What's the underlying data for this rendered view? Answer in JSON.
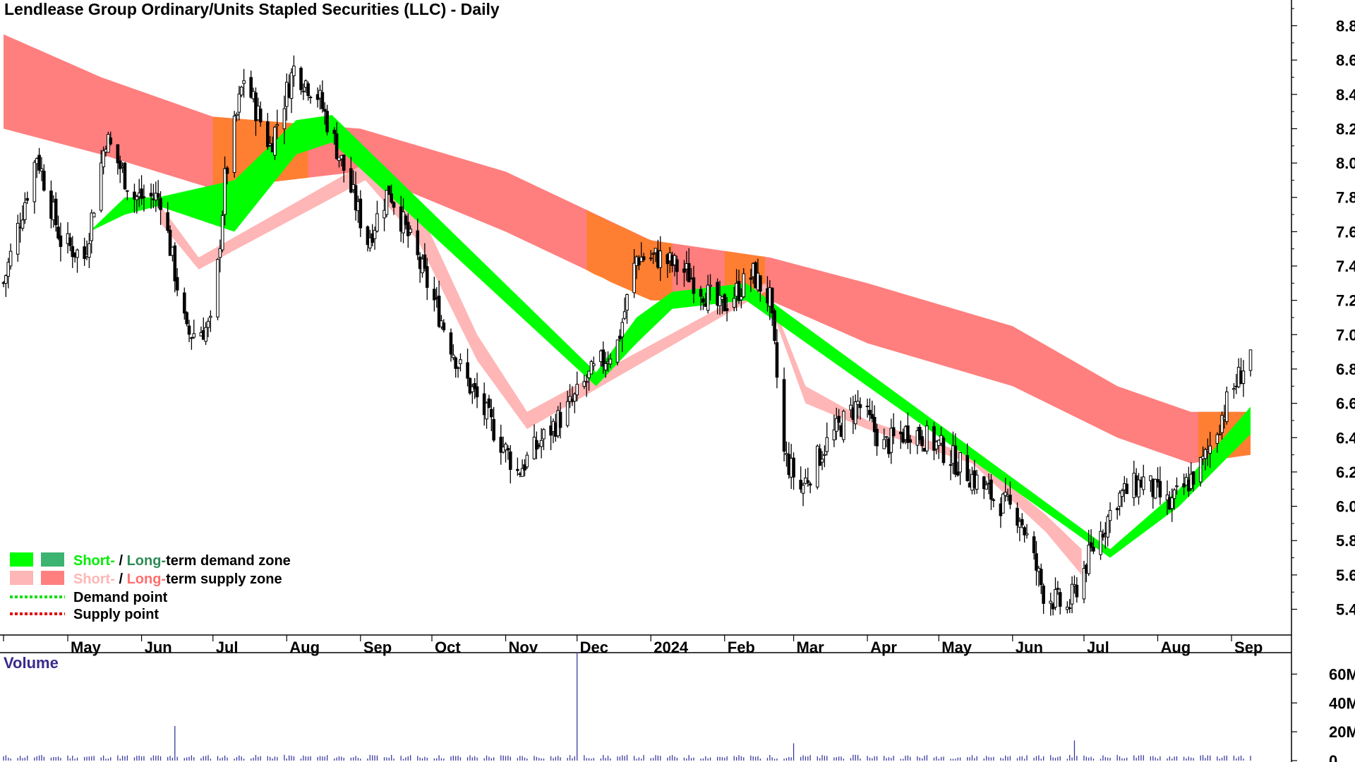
{
  "chart_data": {
    "type": "candlestick",
    "title": "Lendlease Group Ordinary/Units Stapled Securities (LLC) - Daily",
    "y_axis": {
      "ticks": [
        "8.8",
        "8.6",
        "8.4",
        "8.2",
        "8.0",
        "7.8",
        "7.6",
        "7.4",
        "7.2",
        "7.0",
        "6.8",
        "6.6",
        "6.4",
        "6.2",
        "6.0",
        "5.8",
        "5.6",
        "5.4"
      ],
      "range": [
        5.25,
        8.95
      ]
    },
    "x_axis": {
      "months": [
        "May",
        "Jun",
        "Jul",
        "Aug",
        "Sep",
        "Oct",
        "Nov",
        "Dec",
        "2024",
        "Feb",
        "Mar",
        "Apr",
        "May",
        "Jun",
        "Jul",
        "Aug",
        "Sep"
      ],
      "start": "2023-04-04",
      "end": "2024-09-09"
    },
    "price_anchors": [
      [
        "2023-04-04",
        7.3
      ],
      [
        "2023-04-18",
        8.05
      ],
      [
        "2023-04-28",
        7.55
      ],
      [
        "2023-05-08",
        7.45
      ],
      [
        "2023-05-17",
        8.15
      ],
      [
        "2023-05-29",
        7.8
      ],
      [
        "2023-06-09",
        7.8
      ],
      [
        "2023-06-20",
        7.0
      ],
      [
        "2023-07-01",
        7.05
      ],
      [
        "2023-07-06",
        7.9
      ],
      [
        "2023-07-14",
        8.5
      ],
      [
        "2023-07-25",
        8.1
      ],
      [
        "2023-08-04",
        8.55
      ],
      [
        "2023-08-14",
        8.4
      ],
      [
        "2023-08-23",
        8.05
      ],
      [
        "2023-09-04",
        7.55
      ],
      [
        "2023-09-13",
        7.85
      ],
      [
        "2023-09-29",
        7.3
      ],
      [
        "2023-10-13",
        6.8
      ],
      [
        "2023-10-27",
        6.45
      ],
      [
        "2023-11-06",
        6.2
      ],
      [
        "2023-11-17",
        6.4
      ],
      [
        "2023-11-29",
        6.6
      ],
      [
        "2023-12-06",
        6.75
      ],
      [
        "2023-12-18",
        6.95
      ],
      [
        "2023-12-26",
        7.45
      ],
      [
        "2024-01-05",
        7.45
      ],
      [
        "2024-01-17",
        7.35
      ],
      [
        "2024-01-30",
        7.15
      ],
      [
        "2024-02-13",
        7.35
      ],
      [
        "2024-02-20",
        7.2
      ],
      [
        "2024-02-26",
        6.3
      ],
      [
        "2024-03-04",
        6.1
      ],
      [
        "2024-03-14",
        6.35
      ],
      [
        "2024-03-28",
        6.6
      ],
      [
        "2024-04-08",
        6.35
      ],
      [
        "2024-04-19",
        6.45
      ],
      [
        "2024-05-01",
        6.35
      ],
      [
        "2024-05-13",
        6.2
      ],
      [
        "2024-05-24",
        6.05
      ],
      [
        "2024-06-04",
        5.95
      ],
      [
        "2024-06-14",
        5.5
      ],
      [
        "2024-06-24",
        5.4
      ],
      [
        "2024-07-03",
        5.7
      ],
      [
        "2024-07-15",
        6.05
      ],
      [
        "2024-07-26",
        6.15
      ],
      [
        "2024-08-06",
        6.0
      ],
      [
        "2024-08-20",
        6.25
      ],
      [
        "2024-08-30",
        6.6
      ],
      [
        "2024-09-09",
        6.9
      ]
    ],
    "long_term_supply_zone": {
      "color": "#ff7f7f",
      "upper": [
        [
          "2023-04-04",
          8.75
        ],
        [
          "2023-05-15",
          8.5
        ],
        [
          "2023-07-01",
          8.27
        ],
        [
          "2023-09-01",
          8.2
        ],
        [
          "2023-11-01",
          7.95
        ],
        [
          "2024-01-01",
          7.55
        ],
        [
          "2024-02-20",
          7.45
        ],
        [
          "2024-04-01",
          7.3
        ],
        [
          "2024-06-01",
          7.05
        ],
        [
          "2024-07-15",
          6.7
        ],
        [
          "2024-08-15",
          6.55
        ],
        [
          "2024-09-09",
          6.55
        ]
      ],
      "lower": [
        [
          "2023-04-04",
          8.2
        ],
        [
          "2023-05-15",
          8.05
        ],
        [
          "2023-07-01",
          7.85
        ],
        [
          "2023-09-01",
          7.95
        ],
        [
          "2023-11-01",
          7.6
        ],
        [
          "2024-01-01",
          7.2
        ],
        [
          "2024-02-20",
          7.2
        ],
        [
          "2024-04-01",
          6.95
        ],
        [
          "2024-06-01",
          6.7
        ],
        [
          "2024-07-15",
          6.4
        ],
        [
          "2024-08-15",
          6.25
        ],
        [
          "2024-09-09",
          6.3
        ]
      ]
    },
    "short_term_supply_zone": {
      "color": "#ffb6b6",
      "upper": [
        [
          "2023-06-09",
          7.75
        ],
        [
          "2023-06-25",
          7.45
        ],
        [
          "2023-09-03",
          8.0
        ],
        [
          "2023-09-25",
          7.75
        ],
        [
          "2023-10-20",
          7.0
        ],
        [
          "2023-11-10",
          6.55
        ],
        [
          "2024-02-18",
          7.3
        ],
        [
          "2024-03-06",
          6.7
        ],
        [
          "2024-04-01",
          6.5
        ],
        [
          "2024-05-15",
          6.3
        ],
        [
          "2024-06-15",
          5.95
        ],
        [
          "2024-06-30",
          5.75
        ]
      ],
      "lower": [
        [
          "2023-06-09",
          7.65
        ],
        [
          "2023-06-25",
          7.38
        ],
        [
          "2023-09-03",
          7.9
        ],
        [
          "2023-09-25",
          7.55
        ],
        [
          "2023-10-20",
          6.85
        ],
        [
          "2023-11-10",
          6.45
        ],
        [
          "2024-02-18",
          7.25
        ],
        [
          "2024-03-06",
          6.6
        ],
        [
          "2024-04-01",
          6.45
        ],
        [
          "2024-05-15",
          6.25
        ],
        [
          "2024-06-15",
          5.85
        ],
        [
          "2024-06-30",
          5.6
        ]
      ]
    },
    "short_term_demand_zone": {
      "color": "#00ff00",
      "upper": [
        [
          "2023-05-10",
          7.6
        ],
        [
          "2023-05-25",
          7.8
        ],
        [
          "2023-06-08",
          7.8
        ],
        [
          "2023-07-10",
          7.9
        ],
        [
          "2023-08-05",
          8.25
        ],
        [
          "2023-08-20",
          8.28
        ],
        [
          "2023-12-09",
          6.78
        ],
        [
          "2023-12-26",
          7.1
        ],
        [
          "2024-01-10",
          7.25
        ],
        [
          "2024-02-10",
          7.3
        ],
        [
          "2024-07-12",
          5.75
        ],
        [
          "2024-08-10",
          6.1
        ],
        [
          "2024-09-09",
          6.58
        ]
      ],
      "lower": [
        [
          "2023-05-10",
          7.6
        ],
        [
          "2023-05-25",
          7.7
        ],
        [
          "2023-06-08",
          7.75
        ],
        [
          "2023-07-10",
          7.6
        ],
        [
          "2023-08-05",
          8.05
        ],
        [
          "2023-08-20",
          8.12
        ],
        [
          "2023-12-09",
          6.7
        ],
        [
          "2023-12-26",
          6.95
        ],
        [
          "2024-01-10",
          7.15
        ],
        [
          "2024-02-10",
          7.2
        ],
        [
          "2024-07-12",
          5.7
        ],
        [
          "2024-08-10",
          6.0
        ],
        [
          "2024-09-09",
          6.42
        ]
      ]
    },
    "orange_overlap_color": "#ff7f2a",
    "legend": [
      {
        "swatch_a": "#00ff00",
        "swatch_b": "#3cb371",
        "short": "Short-",
        "sep": " / ",
        "long": "Long-",
        "rest": "term demand zone",
        "short_color": "#00ee00",
        "long_color": "#2e8b57"
      },
      {
        "swatch_a": "#ffb6b6",
        "swatch_b": "#ff7f7f",
        "short": "Short-",
        "sep": " / ",
        "long": "Long-",
        "rest": "term supply zone",
        "short_color": "#ffb6b6",
        "long_color": "#ff6f6f"
      },
      {
        "line_color": "#00dd00",
        "text": "Demand point"
      },
      {
        "line_color": "#dd0000",
        "text": "Supply point"
      }
    ],
    "volume": {
      "label": "Volume",
      "ticks": [
        "60M",
        "40M",
        "20M",
        "0"
      ],
      "range": [
        0,
        70
      ],
      "bar_color": "#3a3aa0",
      "spikes": [
        [
          "2023-06-15",
          24
        ],
        [
          "2023-12-01",
          75
        ],
        [
          "2024-03-01",
          12
        ],
        [
          "2024-06-27",
          14
        ]
      ]
    }
  }
}
